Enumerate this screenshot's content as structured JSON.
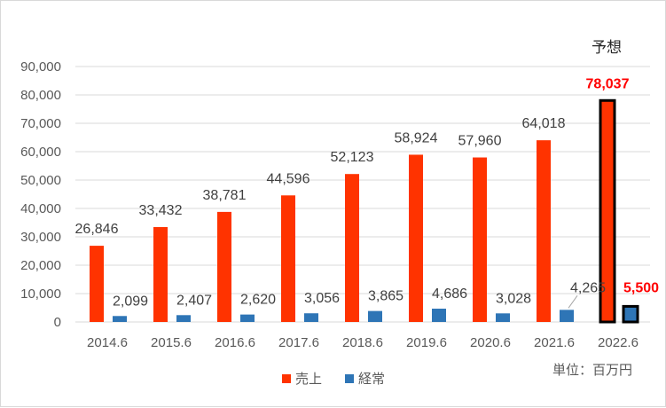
{
  "chart_data": {
    "type": "bar",
    "categories": [
      "2014.6",
      "2015.6",
      "2016.6",
      "2017.6",
      "2018.6",
      "2019.6",
      "2020.6",
      "2021.6",
      "2022.6"
    ],
    "series": [
      {
        "name": "売上",
        "color": "#ff3300",
        "values": [
          26846,
          33432,
          38781,
          44596,
          52123,
          58924,
          57960,
          64018,
          78037
        ],
        "labels": [
          "26,846",
          "33,432",
          "38,781",
          "44,596",
          "52,123",
          "58,924",
          "57,960",
          "64,018",
          "78,037"
        ]
      },
      {
        "name": "経常",
        "color": "#2e75b6",
        "values": [
          2099,
          2407,
          2620,
          3056,
          3865,
          4686,
          3028,
          4265,
          5500
        ],
        "labels": [
          "2,099",
          "2,407",
          "2,620",
          "3,056",
          "3,865",
          "4,686",
          "3,028",
          "4,265",
          "5,500"
        ]
      }
    ],
    "y_ticks": [
      "0",
      "10,000",
      "20,000",
      "30,000",
      "40,000",
      "50,000",
      "60,000",
      "70,000",
      "80,000",
      "90,000"
    ],
    "ylim": [
      0,
      90000
    ],
    "highlight_category_index": 8,
    "highlight_label_color": "#ff0000",
    "highlight_outline_color": "#000000",
    "forecast_label": "予想",
    "unit_label": "単位：百万円",
    "legend_position": "bottom",
    "gridlines": true,
    "title": "",
    "xlabel": "",
    "ylabel": ""
  }
}
